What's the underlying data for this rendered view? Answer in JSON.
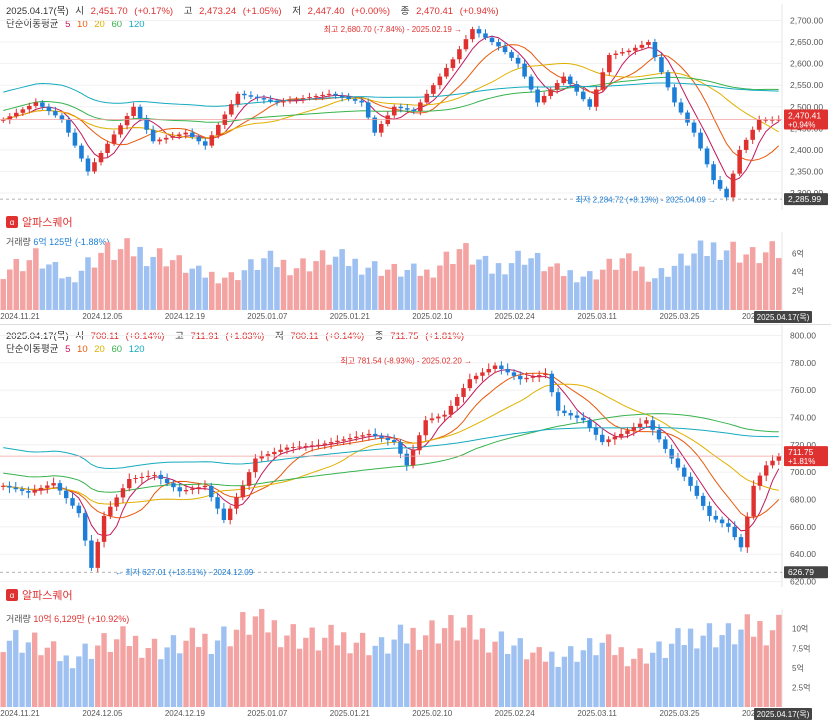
{
  "chart_data": [
    {
      "type": "candlestick",
      "date": "2025.04.17(목)",
      "ohlc": {
        "open": {
          "label": "시",
          "value": "2,451.70",
          "change": "(+0.17%)"
        },
        "high": {
          "label": "고",
          "value": "2,473.24",
          "change": "(+1.05%)"
        },
        "low": {
          "label": "저",
          "value": "2,447.40",
          "change": "(+0.00%)"
        },
        "close": {
          "label": "종",
          "value": "2,470.41",
          "change": "(+0.94%)"
        }
      },
      "ma_label": "단순이동평균",
      "ma_periods": [
        "5",
        "10",
        "20",
        "60",
        "120"
      ],
      "yticks": [
        2300,
        2350,
        2400,
        2450,
        2500,
        2550,
        2600,
        2650,
        2700
      ],
      "ytick_labels": [
        "2,300.00",
        "2,350.00",
        "2,400.00",
        "2,450.00",
        "2,500.00",
        "2,550.00",
        "2,600.00",
        "2,650.00",
        "2,700.00"
      ],
      "ylim": [
        2270,
        2715
      ],
      "current_price": {
        "value": 2470.41,
        "label": "2,470.41",
        "change": "+0.94%"
      },
      "low_line": {
        "value": 2285.99,
        "label": "2,285.99"
      },
      "max_annotation": {
        "value": 2680.7,
        "label": "최고 2,680.70 (-7.84%) - 2025.02.19"
      },
      "min_annotation": {
        "value": 2284.72,
        "label": "최저 2,284.72 (+8.13%) - 2025.04.09"
      },
      "start": 2470,
      "end": 2470.41,
      "anchors": [
        [
          0,
          2470
        ],
        [
          5,
          2510
        ],
        [
          9,
          2470
        ],
        [
          13,
          2350
        ],
        [
          20,
          2500
        ],
        [
          23,
          2420
        ],
        [
          28,
          2440
        ],
        [
          31,
          2410
        ],
        [
          36,
          2530
        ],
        [
          42,
          2510
        ],
        [
          50,
          2530
        ],
        [
          55,
          2510
        ],
        [
          57,
          2440
        ],
        [
          60,
          2500
        ],
        [
          63,
          2490
        ],
        [
          69,
          2610
        ],
        [
          72,
          2680
        ],
        [
          76,
          2640
        ],
        [
          79,
          2600
        ],
        [
          82,
          2510
        ],
        [
          86,
          2570
        ],
        [
          90,
          2500
        ],
        [
          93,
          2620
        ],
        [
          96,
          2630
        ],
        [
          99,
          2650
        ],
        [
          103,
          2510
        ],
        [
          106,
          2440
        ],
        [
          109,
          2330
        ],
        [
          111,
          2290
        ],
        [
          113,
          2400
        ],
        [
          116,
          2470
        ],
        [
          119,
          2470.41
        ]
      ],
      "vol_label": "거래량",
      "vol_value": "6억 125만 (-1.88%)",
      "vol_yticks": [
        2,
        4,
        6
      ],
      "vol_ytick_labels": [
        "2억",
        "4억",
        "6억"
      ],
      "vol_max": 7.2,
      "vol_anchors": [
        [
          0,
          4.2
        ],
        [
          5,
          5.5
        ],
        [
          10,
          3.2
        ],
        [
          15,
          6
        ],
        [
          20,
          6.2
        ],
        [
          25,
          5.6
        ],
        [
          30,
          3.8
        ],
        [
          35,
          3.5
        ],
        [
          40,
          5.2
        ],
        [
          45,
          4.6
        ],
        [
          50,
          5.5
        ],
        [
          55,
          4.8
        ],
        [
          60,
          4.1
        ],
        [
          65,
          3.9
        ],
        [
          70,
          6.4
        ],
        [
          75,
          4.2
        ],
        [
          80,
          5.8
        ],
        [
          85,
          4
        ],
        [
          90,
          3.6
        ],
        [
          95,
          5.2
        ],
        [
          100,
          3.5
        ],
        [
          105,
          5.4
        ],
        [
          110,
          6.8
        ],
        [
          115,
          5.6
        ],
        [
          119,
          6
        ]
      ],
      "xtick_labels": [
        "2024.11.21",
        "2024.12.05",
        "2024.12.19",
        "2025.01.07",
        "2025.01.21",
        "2025.02.10",
        "2025.02.24",
        "2025.03.11",
        "2025.03.25",
        "2025.04.08"
      ],
      "last_date_label": "2025.04.17(목)"
    },
    {
      "type": "candlestick",
      "date": "2025.04.17(목)",
      "ohlc": {
        "open": {
          "label": "시",
          "value": "700.11",
          "change": "(+0.14%)"
        },
        "high": {
          "label": "고",
          "value": "711.91",
          "change": "(+1.83%)"
        },
        "low": {
          "label": "저",
          "value": "700.11",
          "change": "(+0.14%)"
        },
        "close": {
          "label": "종",
          "value": "711.75",
          "change": "(+1.81%)"
        }
      },
      "ma_label": "단순이동평균",
      "ma_periods": [
        "5",
        "10",
        "20",
        "60",
        "120"
      ],
      "yticks": [
        620,
        640,
        660,
        680,
        700,
        720,
        740,
        760,
        780,
        800
      ],
      "ytick_labels": [
        "620.00",
        "640.00",
        "660.00",
        "680.00",
        "700.00",
        "720.00",
        "740.00",
        "760.00",
        "780.00",
        "800.00"
      ],
      "ylim": [
        616,
        804
      ],
      "current_price": {
        "value": 711.75,
        "label": "711.75",
        "change": "+1.81%"
      },
      "low_line": {
        "value": 626.79,
        "label": "626.79"
      },
      "max_annotation": {
        "value": 781.54,
        "label": "최고 781.54 (-8.93%) - 2025.02.20"
      },
      "min_annotation": {
        "value": 627.01,
        "label": "최저 627.01 (+13.51%) - 2024.12.09"
      },
      "start": 690,
      "end": 711.75,
      "anchors": [
        [
          0,
          690
        ],
        [
          4,
          685
        ],
        [
          8,
          692
        ],
        [
          12,
          670
        ],
        [
          14,
          630
        ],
        [
          16,
          668
        ],
        [
          20,
          695
        ],
        [
          24,
          698
        ],
        [
          28,
          686
        ],
        [
          32,
          690
        ],
        [
          35,
          665
        ],
        [
          38,
          690
        ],
        [
          40,
          710
        ],
        [
          45,
          718
        ],
        [
          50,
          720
        ],
        [
          55,
          725
        ],
        [
          58,
          728
        ],
        [
          62,
          722
        ],
        [
          64,
          705
        ],
        [
          67,
          738
        ],
        [
          70,
          742
        ],
        [
          74,
          768
        ],
        [
          78,
          778
        ],
        [
          82,
          768
        ],
        [
          86,
          772
        ],
        [
          88,
          745
        ],
        [
          92,
          738
        ],
        [
          95,
          722
        ],
        [
          98,
          728
        ],
        [
          102,
          738
        ],
        [
          106,
          710
        ],
        [
          109,
          690
        ],
        [
          112,
          668
        ],
        [
          115,
          660
        ],
        [
          117,
          645
        ],
        [
          119,
          690
        ],
        [
          121,
          705
        ],
        [
          123,
          711.75
        ]
      ],
      "vol_label": "거래량",
      "vol_value": "10억 6,129만 (+10.92%)",
      "vol_yticks": [
        2.5,
        5,
        7.5,
        10
      ],
      "vol_ytick_labels": [
        "2.5억",
        "5억",
        "7.5억",
        "10억"
      ],
      "vol_max": 11.5,
      "vol_anchors": [
        [
          0,
          9
        ],
        [
          5,
          8
        ],
        [
          10,
          6
        ],
        [
          15,
          7.8
        ],
        [
          20,
          8.5
        ],
        [
          25,
          7.4
        ],
        [
          30,
          8.2
        ],
        [
          35,
          9
        ],
        [
          40,
          11
        ],
        [
          45,
          9.5
        ],
        [
          50,
          8.3
        ],
        [
          55,
          8.8
        ],
        [
          60,
          7.5
        ],
        [
          65,
          9.2
        ],
        [
          70,
          10
        ],
        [
          75,
          9.4
        ],
        [
          80,
          8.2
        ],
        [
          85,
          6.2
        ],
        [
          90,
          6.8
        ],
        [
          95,
          7.8
        ],
        [
          100,
          6.4
        ],
        [
          105,
          7.2
        ],
        [
          110,
          9.6
        ],
        [
          115,
          9
        ],
        [
          120,
          10
        ],
        [
          123,
          10.3
        ]
      ],
      "xtick_labels": [
        "2024.11.21",
        "2024.12.05",
        "2024.12.19",
        "2025.01.07",
        "2025.01.21",
        "2025.02.10",
        "2025.02.24",
        "2025.03.11",
        "2025.03.25",
        "2025.04.08"
      ],
      "last_date_label": "2025.04.17(목)"
    }
  ],
  "watermark": "알파스퀘어",
  "colors": {
    "up": "#e03131",
    "down": "#1c7ed6",
    "vol_up": "#f4a3a3",
    "vol_down": "#9ec1f2",
    "ma5": "#c2185b",
    "ma10": "#e8590c",
    "ma20": "#e0b000",
    "ma60": "#37b24d",
    "ma120": "#15aabf"
  }
}
